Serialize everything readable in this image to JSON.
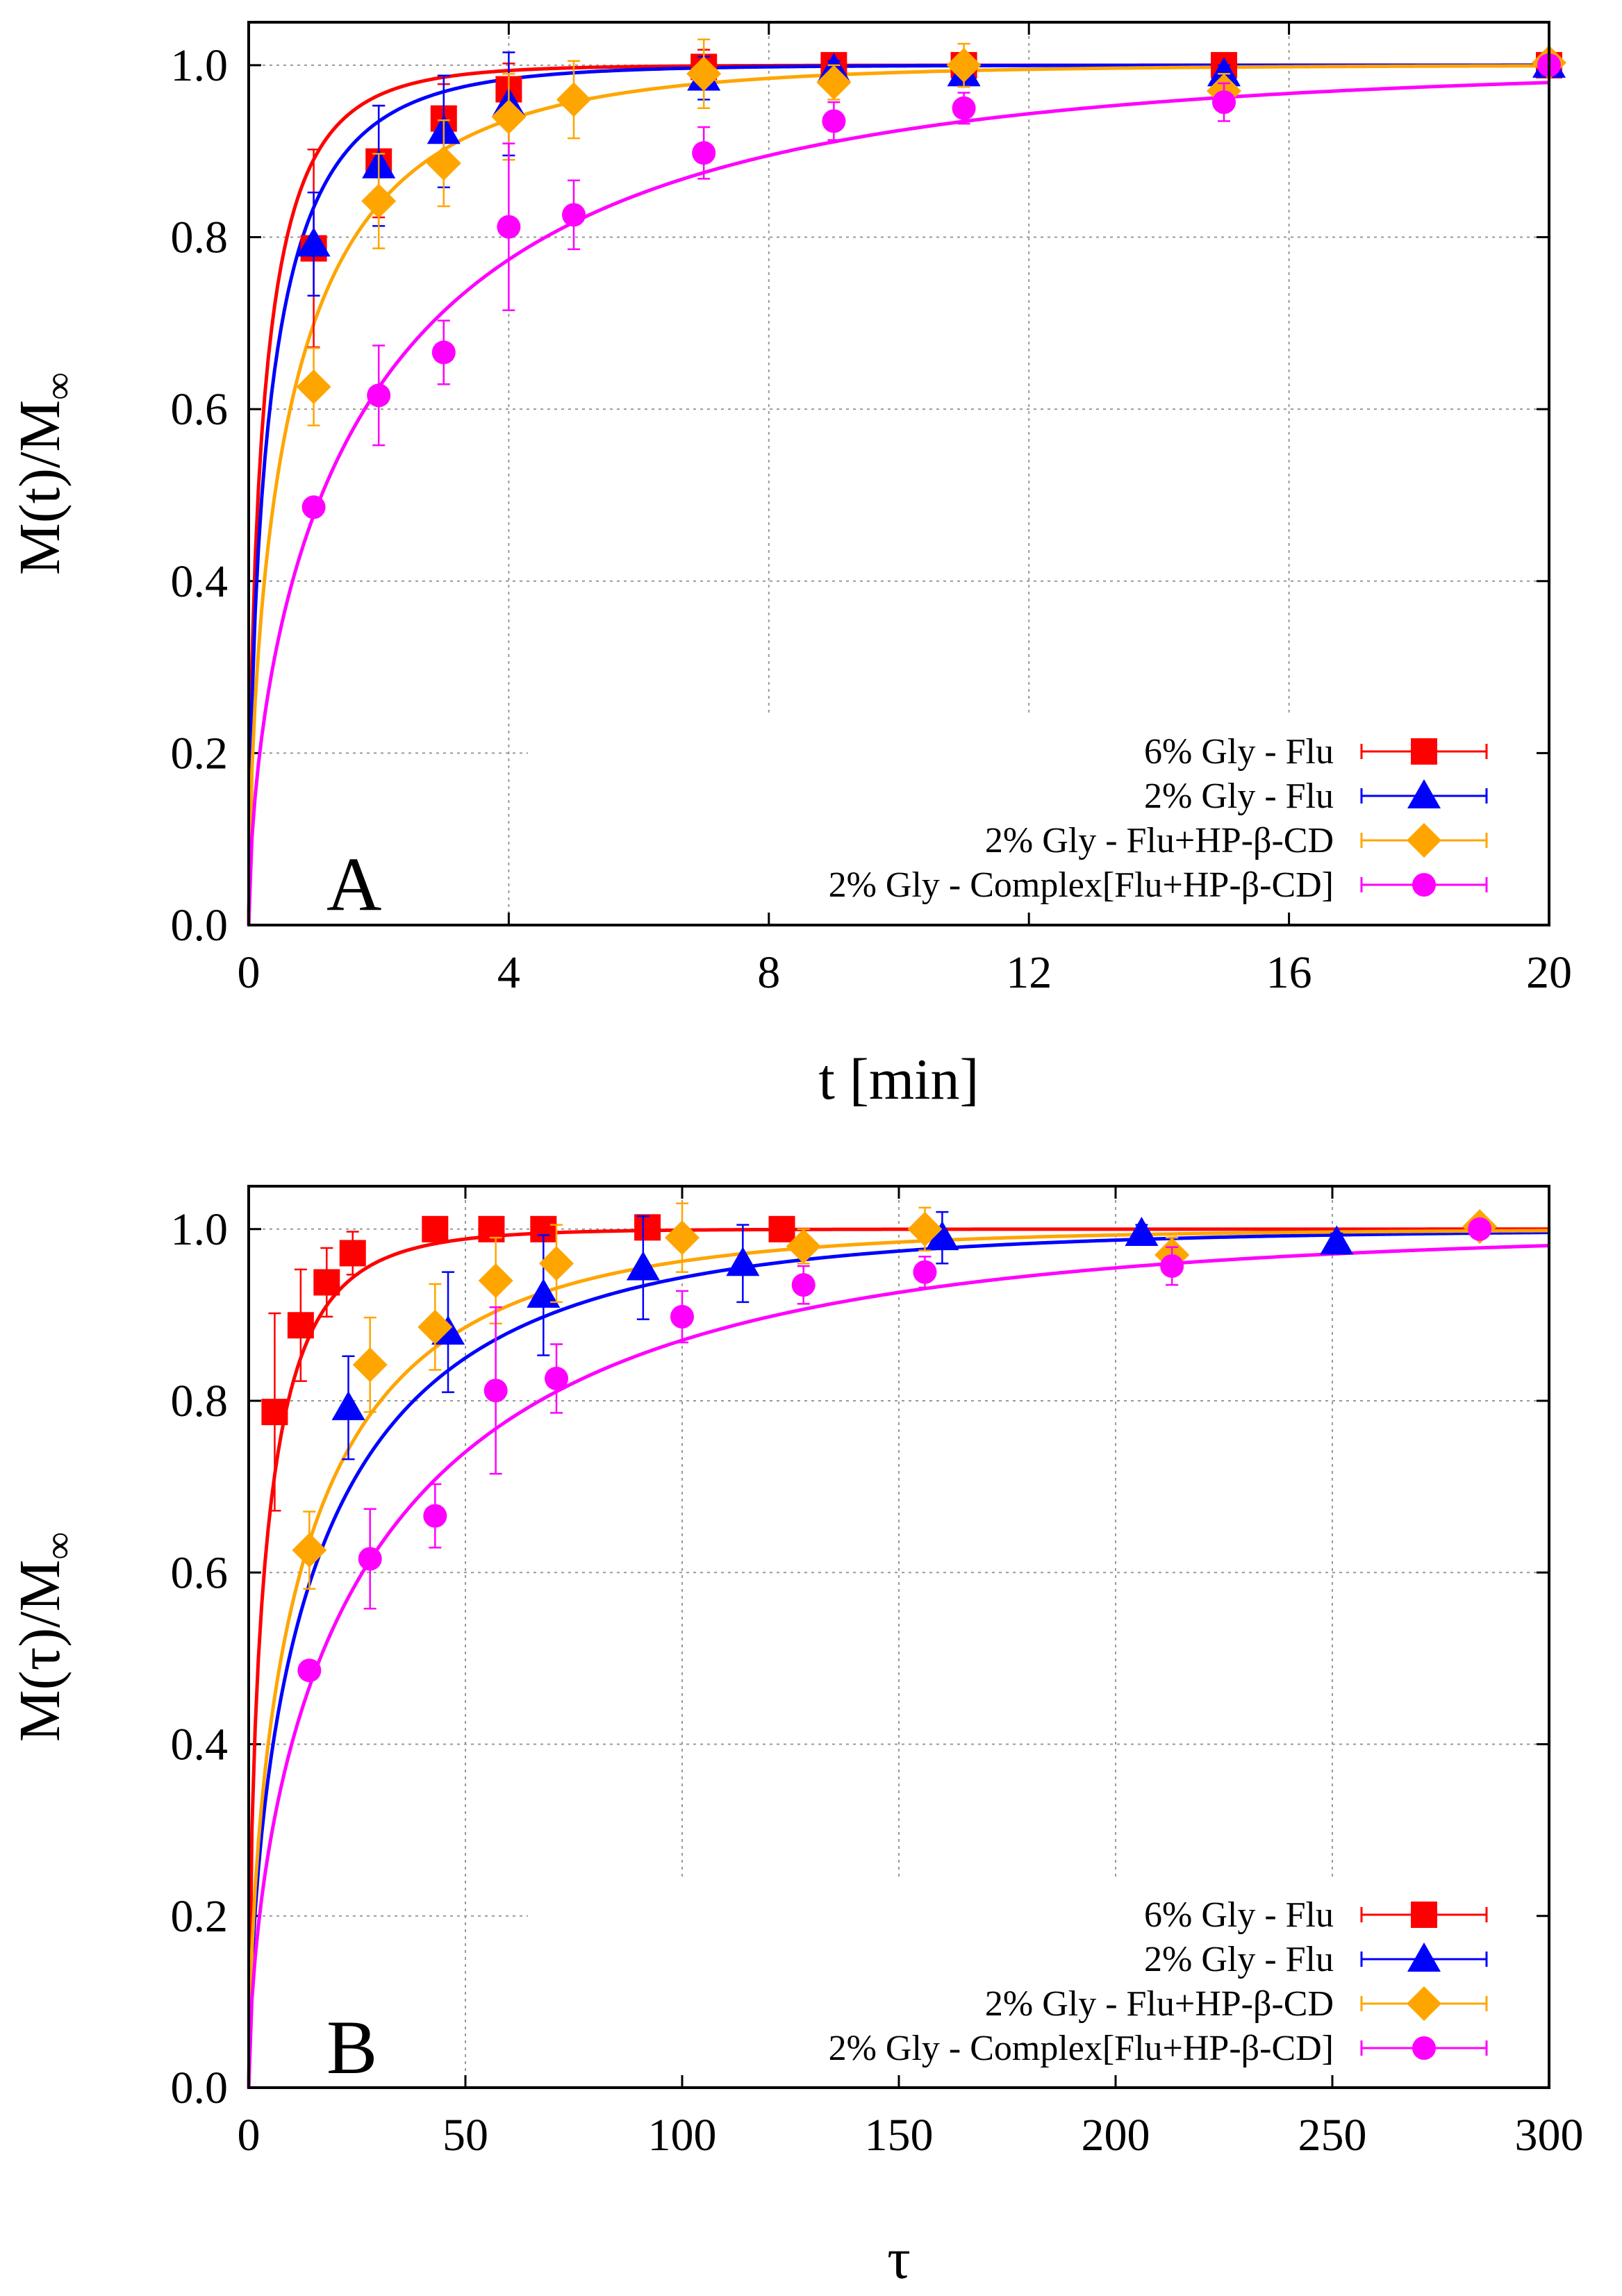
{
  "colors": {
    "six_flu": "#ff0000",
    "two_flu": "#0000ff",
    "two_flu_hpbcd": "#ffa500",
    "two_complex": "#ff00ff"
  },
  "chart_data": [
    {
      "type": "scatter",
      "panel_letter": "A",
      "xlabel": "t [min]",
      "ylabel": "M(t)/M",
      "ylabel_sub": "∞",
      "xlim": [
        0,
        20
      ],
      "ylim": [
        0,
        1.05
      ],
      "xticks": [
        0,
        4,
        8,
        12,
        16,
        20
      ],
      "yticks": [
        0.0,
        0.2,
        0.4,
        0.6,
        0.8,
        1.0
      ],
      "xtick_labels": [
        "0",
        "4",
        "8",
        "12",
        "16",
        "20"
      ],
      "ytick_labels": [
        "0.0",
        "0.2",
        "0.4",
        "0.6",
        "0.8",
        "1.0"
      ],
      "grid": true,
      "legend_position": "bottom-right",
      "series": [
        {
          "name": "6% Gly - Flu",
          "marker": "square",
          "color": "#ff0000",
          "fit_k": 1.55,
          "x": [
            1,
            2,
            3,
            4,
            7,
            9,
            11,
            15,
            20
          ],
          "y": [
            0.787,
            0.888,
            0.938,
            0.972,
            0.998,
            1.0,
            1.0,
            1.0,
            1.0
          ],
          "err": [
            0.115,
            0.065,
            0.04,
            0.03,
            0.02,
            0.005,
            0.005,
            0.005,
            0.005
          ]
        },
        {
          "name": "2% Gly - Flu",
          "marker": "triangle",
          "color": "#0000ff",
          "fit_k": 1.1,
          "x": [
            1,
            2,
            3,
            4,
            7,
            9,
            11,
            15,
            20
          ],
          "y": [
            0.792,
            0.883,
            0.923,
            0.955,
            0.985,
            0.995,
            0.99,
            0.99,
            1.0
          ],
          "err": [
            0.06,
            0.07,
            0.065,
            0.06,
            0.025,
            0.01,
            0.015,
            0.01,
            0.005
          ]
        },
        {
          "name": "2% Gly - Flu+HP-β-CD",
          "marker": "diamond",
          "color": "#ffa500",
          "fit_k": 0.56,
          "x": [
            1,
            2,
            3,
            4,
            5,
            7,
            9,
            11,
            15,
            20
          ],
          "y": [
            0.626,
            0.842,
            0.886,
            0.94,
            0.96,
            0.99,
            0.98,
            1.0,
            0.97,
            1.003
          ],
          "err": [
            0.045,
            0.055,
            0.05,
            0.05,
            0.045,
            0.04,
            0.02,
            0.025,
            0.02,
            0.005
          ]
        },
        {
          "name": "2% Gly - Complex[Flu+HP-β-CD]",
          "marker": "circle",
          "color": "#ff00ff",
          "fit_k": 0.2,
          "x": [
            1,
            2,
            3,
            4,
            5,
            7,
            9,
            11,
            15,
            20
          ],
          "y": [
            0.486,
            0.616,
            0.666,
            0.812,
            0.826,
            0.898,
            0.935,
            0.95,
            0.957,
            1.0
          ],
          "err": [
            0.01,
            0.058,
            0.037,
            0.097,
            0.04,
            0.03,
            0.022,
            0.018,
            0.022,
            0.005
          ]
        }
      ]
    },
    {
      "type": "scatter",
      "panel_letter": "B",
      "xlabel": "τ",
      "ylabel": "M(τ)/M",
      "ylabel_sub": "∞",
      "xlim": [
        0,
        300
      ],
      "ylim": [
        0,
        1.05
      ],
      "xticks": [
        0,
        50,
        100,
        150,
        200,
        250,
        300
      ],
      "yticks": [
        0.0,
        0.2,
        0.4,
        0.6,
        0.8,
        1.0
      ],
      "xtick_labels": [
        "0",
        "50",
        "100",
        "150",
        "200",
        "250",
        "300"
      ],
      "ytick_labels": [
        "0.0",
        "0.2",
        "0.4",
        "0.6",
        "0.8",
        "1.0"
      ],
      "grid": true,
      "legend_position": "bottom-right",
      "series": [
        {
          "name": "6% Gly - Flu",
          "marker": "square",
          "color": "#ff0000",
          "fit_k": 0.1,
          "x": [
            6,
            12,
            18,
            24,
            43,
            56,
            68,
            92,
            123
          ],
          "y": [
            0.787,
            0.888,
            0.938,
            0.972,
            1.0,
            1.0,
            1.0,
            1.002,
            1.0
          ],
          "err": [
            0.115,
            0.065,
            0.04,
            0.025,
            0.005,
            0.005,
            0.005,
            0.005,
            0.005
          ]
        },
        {
          "name": "2% Gly - Flu",
          "marker": "triangle",
          "color": "#0000ff",
          "fit_k": 0.024,
          "x": [
            23,
            46,
            68,
            91,
            114,
            160,
            206,
            251
          ],
          "y": [
            0.792,
            0.88,
            0.923,
            0.955,
            0.96,
            0.99,
            0.995,
            0.985
          ],
          "err": [
            0.06,
            0.07,
            0.07,
            0.06,
            0.045,
            0.03,
            0.01,
            0.01
          ]
        },
        {
          "name": "2% Gly - Flu+HP-β-CD",
          "marker": "diamond",
          "color": "#ffa500",
          "fit_k": 0.03,
          "x": [
            14,
            28,
            43,
            57,
            71,
            100,
            128,
            156,
            213,
            284
          ],
          "y": [
            0.626,
            0.842,
            0.886,
            0.94,
            0.96,
            0.99,
            0.98,
            1.0,
            0.97,
            1.003
          ],
          "err": [
            0.045,
            0.055,
            0.05,
            0.05,
            0.045,
            0.04,
            0.02,
            0.025,
            0.02,
            0.005
          ]
        },
        {
          "name": "2% Gly - Complex[Flu+HP-β-CD]",
          "marker": "circle",
          "color": "#ff00ff",
          "fit_k": 0.0136,
          "x": [
            14,
            28,
            43,
            57,
            71,
            100,
            128,
            156,
            213,
            284
          ],
          "y": [
            0.486,
            0.616,
            0.666,
            0.812,
            0.826,
            0.898,
            0.935,
            0.95,
            0.957,
            1.0
          ],
          "err": [
            0.01,
            0.058,
            0.037,
            0.097,
            0.04,
            0.03,
            0.022,
            0.018,
            0.022,
            0.005
          ]
        }
      ]
    }
  ]
}
